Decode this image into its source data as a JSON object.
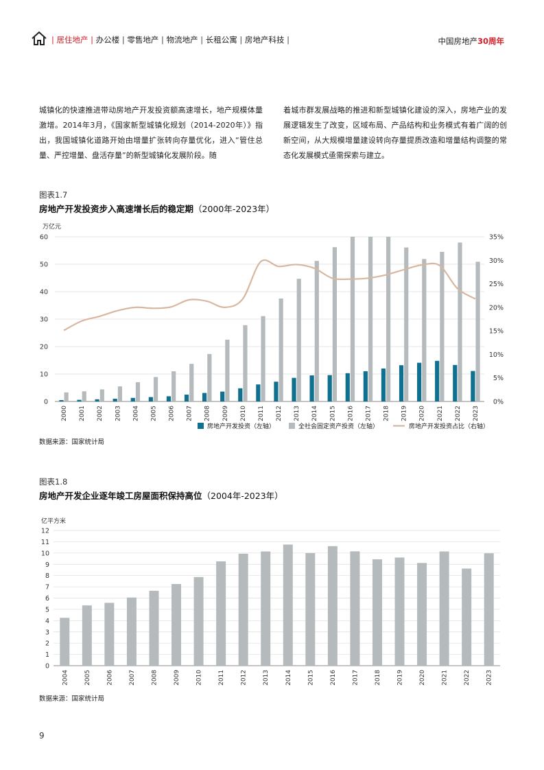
{
  "header": {
    "nav_active": "| 居住地产 |",
    "nav_items": [
      "办公楼",
      "零售地产",
      "物流地产",
      "长租公寓",
      "房地产科技"
    ],
    "brand_prefix": "中国房地产",
    "brand_accent": "30周年",
    "accent_color": "#d3202a"
  },
  "body": {
    "left_text": "城镇化的快速推进带动房地产开发投资额高速增长，地产规模体量激增。2014年3月，《国家新型城镇化规划（2014-2020年）》指出，我国城镇化道路开始由增量扩张转向存量优化，进入“管住总量、严控增量、盘活存量”的新型城镇化发展阶段。随",
    "right_text": "着城市群发展战略的推进和新型城镇化建设的深入，房地产业的发展逻辑发生了改变，区域布局、产品结构和业务模式有着广阔的创新空间，从大规模增量建设转向存量提质改造和增量结构调整的常态化发展模式亟需探索与建立。"
  },
  "figure1": {
    "number": "图表1.7",
    "title": "房地产开发投资步入高速增长后的稳定期",
    "title_range": "（2000年-2023年）",
    "source": "数据来源：国家统计局"
  },
  "figure2": {
    "number": "图表1.8",
    "title": "房地产开发企业逐年竣工房屋面积保持高位",
    "title_range": "（2004年-2023年）",
    "source": "数据来源：国家统计局"
  },
  "page_number": "9",
  "chart_data": [
    {
      "type": "bar",
      "unit_label": "万亿元",
      "categories": [
        "2000",
        "2001",
        "2002",
        "2003",
        "2004",
        "2005",
        "2006",
        "2007",
        "2008",
        "2009",
        "2010",
        "2011",
        "2012",
        "2013",
        "2014",
        "2015",
        "2016",
        "2017",
        "2018",
        "2019",
        "2020",
        "2021",
        "2022",
        "2023"
      ],
      "series": [
        {
          "name": "房地产开发投资（左轴）",
          "axis": "left",
          "kind": "bar",
          "color": "#10708f",
          "values": [
            0.5,
            0.6,
            0.8,
            1.0,
            1.3,
            1.6,
            1.9,
            2.5,
            3.1,
            3.6,
            4.8,
            6.2,
            7.2,
            8.6,
            9.5,
            9.6,
            10.3,
            11.0,
            12.0,
            13.2,
            14.1,
            14.8,
            13.3,
            11.1
          ]
        },
        {
          "name": "全社会固定资产投资（左轴）",
          "axis": "left",
          "kind": "bar",
          "color": "#b5bbbd",
          "values": [
            3.3,
            3.7,
            4.4,
            5.5,
            7.0,
            8.9,
            11.0,
            13.7,
            17.3,
            22.5,
            27.8,
            31.1,
            37.5,
            44.7,
            51.2,
            56.2,
            60.6,
            64.1,
            64.6,
            56.1,
            51.9,
            54.5,
            57.9,
            50.9
          ]
        },
        {
          "name": "房地产开发投资占比（右轴）",
          "axis": "right",
          "kind": "line",
          "color": "#d7b7a0",
          "values": [
            15.1,
            17.1,
            18.1,
            19.3,
            20.0,
            19.8,
            20.1,
            21.6,
            21.3,
            20.0,
            21.8,
            29.7,
            28.7,
            29.1,
            28.3,
            26.2,
            26.0,
            26.2,
            26.9,
            28.0,
            29.0,
            28.9,
            24.0,
            21.8
          ]
        }
      ],
      "y_left": {
        "ticks": [
          0,
          10,
          20,
          30,
          40,
          50,
          60
        ],
        "ylim": [
          0,
          60
        ]
      },
      "y_right": {
        "ticks": [
          "0%",
          "5%",
          "10%",
          "15%",
          "20%",
          "25%",
          "30%",
          "35%"
        ],
        "ylim": [
          0,
          35
        ]
      },
      "legend_position": "bottom-right",
      "grid": true
    },
    {
      "type": "bar",
      "unit_label": "亿平方米",
      "categories": [
        "2004",
        "2005",
        "2006",
        "2007",
        "2008",
        "2009",
        "2010",
        "2011",
        "2012",
        "2013",
        "2014",
        "2015",
        "2016",
        "2017",
        "2018",
        "2019",
        "2020",
        "2021",
        "2022",
        "2023"
      ],
      "series": [
        {
          "color": "#b5bbbd",
          "values": [
            4.25,
            5.35,
            5.58,
            6.05,
            6.65,
            7.25,
            7.87,
            9.26,
            9.94,
            10.14,
            10.75,
            10.0,
            10.61,
            10.15,
            9.44,
            9.6,
            9.12,
            10.14,
            8.62,
            9.98
          ]
        }
      ],
      "y_left": {
        "ticks": [
          0,
          1,
          2,
          3,
          4,
          5,
          6,
          7,
          8,
          9,
          10,
          11,
          12
        ],
        "ylim": [
          0,
          12
        ]
      },
      "grid": true
    }
  ]
}
